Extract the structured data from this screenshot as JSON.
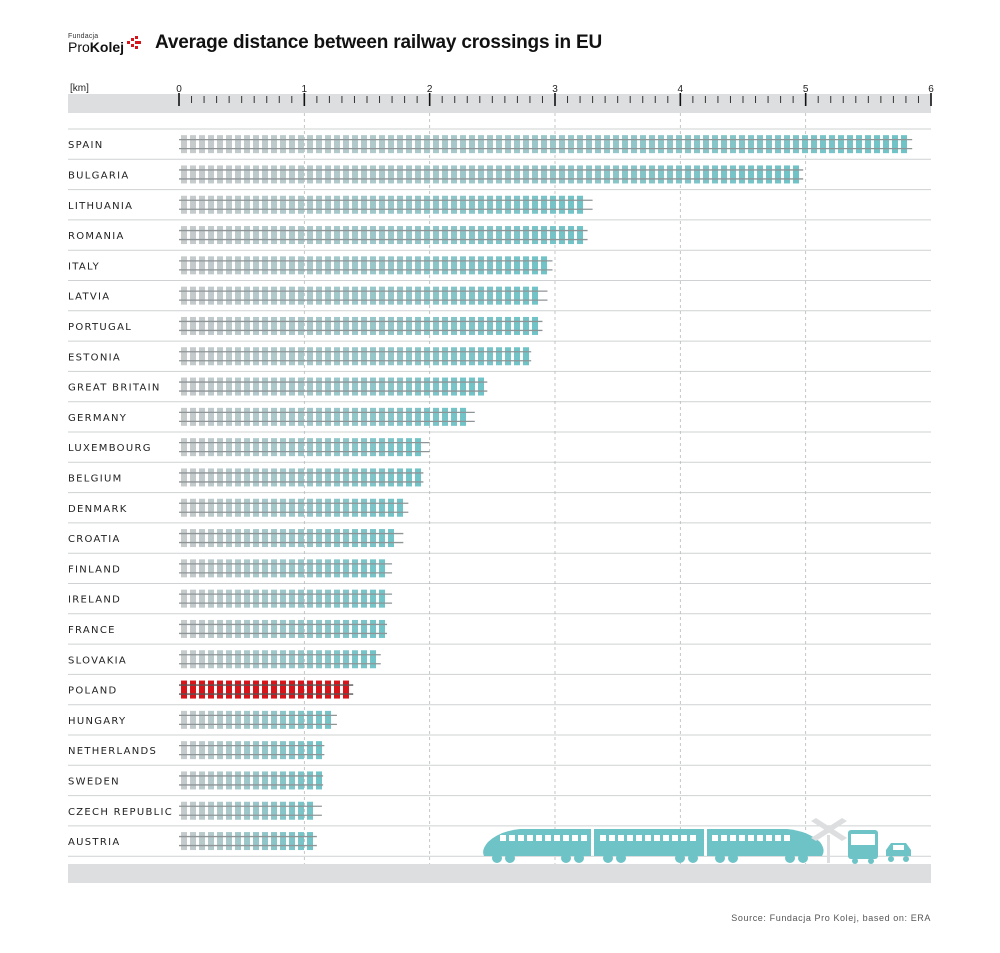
{
  "header": {
    "logo_small": "Fundacja",
    "logo_pro": "Pro",
    "logo_kolej": "Kolej",
    "title": "Average distance between railway crossings in EU"
  },
  "source": "Source: Fundacja Pro Kolej, based on: ERA",
  "colors": {
    "bar": "#6ec3c7",
    "bar_start": "#c8cbcc",
    "highlight": "#d7141a",
    "axis_band": "#dcdedf",
    "grid": "#b7b9ba",
    "text": "#222222"
  },
  "icons": [
    "logo-mark-icon",
    "train-icon",
    "crossing-sign-icon",
    "bus-icon",
    "car-icon"
  ],
  "chart_data": {
    "type": "bar",
    "orientation": "horizontal",
    "unit": "[km]",
    "xlim": [
      0,
      6
    ],
    "ticks": [
      "0",
      "1",
      "2",
      "3",
      "4",
      "5",
      "6"
    ],
    "grid": true,
    "highlight": "POLAND",
    "categories": [
      "SPAIN",
      "BULGARIA",
      "LITHUANIA",
      "ROMANIA",
      "ITALY",
      "LATVIA",
      "PORTUGAL",
      "ESTONIA",
      "GREAT BRITAIN",
      "GERMANY",
      "LUXEMBOURG",
      "BELGIUM",
      "DENMARK",
      "CROATIA",
      "FINLAND",
      "IRELAND",
      "FRANCE",
      "SLOVAKIA",
      "POLAND",
      "HUNGARY",
      "NETHERLANDS",
      "SWEDEN",
      "CZECH REPUBLIC",
      "AUSTRIA"
    ],
    "values": [
      5.85,
      4.98,
      3.3,
      3.26,
      2.98,
      2.94,
      2.9,
      2.81,
      2.46,
      2.36,
      2.0,
      1.95,
      1.83,
      1.79,
      1.7,
      1.7,
      1.66,
      1.61,
      1.39,
      1.26,
      1.16,
      1.15,
      1.14,
      1.1
    ]
  }
}
